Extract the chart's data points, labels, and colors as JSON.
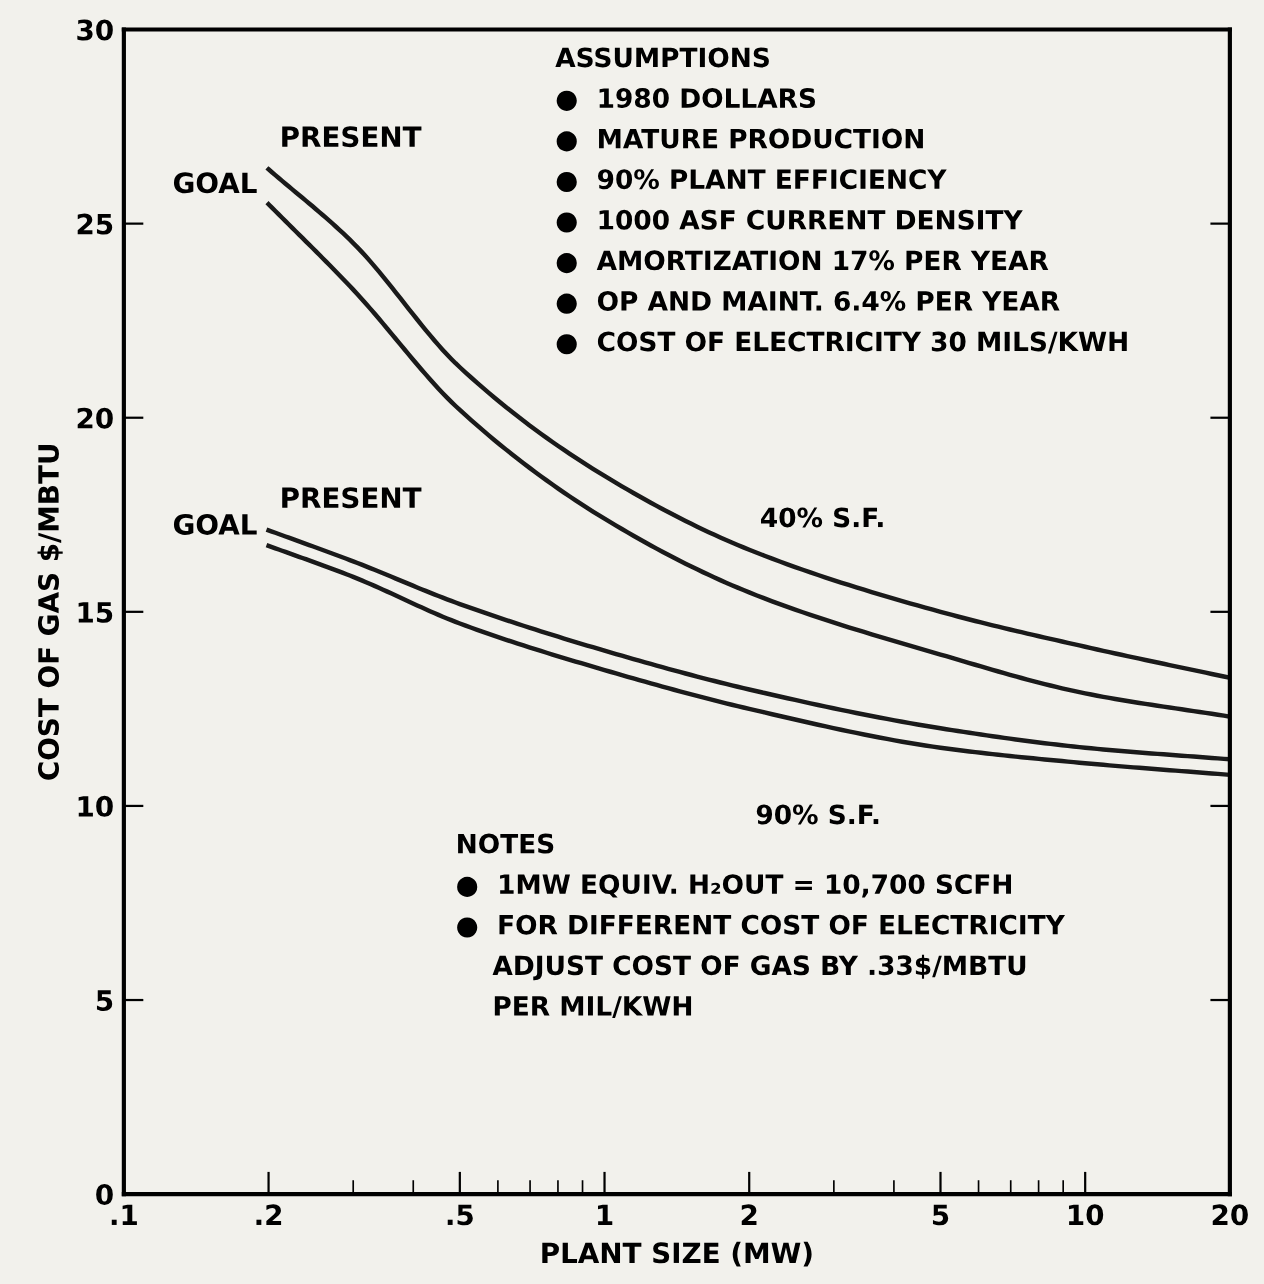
{
  "chart_data": {
    "type": "line",
    "xlabel": "PLANT SIZE (MW)",
    "ylabel": "COST OF GAS $/MBTU",
    "log": "x",
    "xlim": [
      0.1,
      20
    ],
    "xticks": [
      {
        "value": 0.1,
        "label": ".1"
      },
      {
        "value": 0.2,
        "label": ".2"
      },
      {
        "value": 0.5,
        "label": ".5"
      },
      1,
      2,
      5,
      10,
      20
    ],
    "ylim": [
      0,
      30
    ],
    "yticks": [
      0,
      5,
      10,
      15,
      20,
      25,
      30
    ],
    "grid": false,
    "legend": false,
    "line_style": "solid",
    "series": [
      {
        "name": "PRESENT",
        "color": "#1a1a1a",
        "x": [
          0.2,
          0.3,
          0.5,
          1,
          2,
          5,
          10,
          20
        ],
        "values": [
          26.4,
          24.5,
          21.3,
          18.5,
          16.6,
          15.0,
          14.1,
          13.3
        ]
      },
      {
        "name": "GOAL",
        "color": "#1a1a1a",
        "x": [
          0.2,
          0.3,
          0.5,
          1,
          2,
          5,
          10,
          20
        ],
        "values": [
          25.5,
          23.3,
          20.2,
          17.4,
          15.5,
          13.9,
          12.9,
          12.3
        ]
      },
      {
        "name": "PRESENT",
        "color": "#1a1a1a",
        "x": [
          0.2,
          0.3,
          0.5,
          1,
          2,
          5,
          10,
          20
        ],
        "values": [
          17.1,
          16.3,
          15.2,
          14.0,
          13.0,
          12.0,
          11.5,
          11.2
        ]
      },
      {
        "name": "GOAL",
        "color": "#1a1a1a",
        "x": [
          0.2,
          0.3,
          0.5,
          1,
          2,
          5,
          10,
          20
        ],
        "values": [
          16.7,
          15.9,
          14.7,
          13.5,
          12.5,
          11.5,
          11.1,
          10.8
        ]
      }
    ],
    "annotations": [
      "40% S.F.",
      "90% S.F.",
      "ASSUMPTIONS\n●  1980 DOLLARS\n●  MATURE PRODUCTION\n●  90% PLANT EFFICIENCY\n●  1000 ASF CURRENT DENSITY\n●  AMORTIZATION 17% PER YEAR\n●  OP AND MAINT. 6.4% PER YEAR\n●  COST OF ELECTRICITY 30 MILS/KWH",
      "NOTES\n●  1MW EQUIV. H₂OUT = 10,700 SCFH\n●  FOR DIFFERENT COST OF ELECTRICITY\n    ADJUST COST OF GAS BY .33$/MBTU\n    PER MIL/KWH"
    ]
  }
}
